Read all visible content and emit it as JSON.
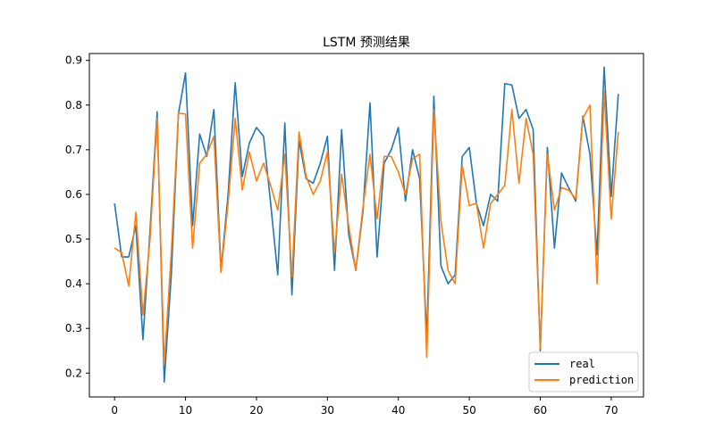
{
  "chart_data": {
    "type": "line",
    "title": "LSTM 预测结果",
    "xlabel": "",
    "ylabel": "",
    "xlim": [
      -3.55,
      74.55
    ],
    "ylim": [
      0.1466,
      0.9154
    ],
    "xticks": [
      0,
      10,
      20,
      30,
      40,
      50,
      60,
      70
    ],
    "yticks": [
      0.2,
      0.3,
      0.4,
      0.5,
      0.6,
      0.7,
      0.8,
      0.9
    ],
    "ytick_labels": [
      "0.2",
      "0.3",
      "0.4",
      "0.5",
      "0.6",
      "0.7",
      "0.8",
      "0.9"
    ],
    "grid": false,
    "legend_position": "lower-right",
    "x": [
      0,
      1,
      2,
      3,
      4,
      5,
      6,
      7,
      8,
      9,
      10,
      11,
      12,
      13,
      14,
      15,
      16,
      17,
      18,
      19,
      20,
      21,
      22,
      23,
      24,
      25,
      26,
      27,
      28,
      29,
      30,
      31,
      32,
      33,
      34,
      35,
      36,
      37,
      38,
      39,
      40,
      41,
      42,
      43,
      44,
      45,
      46,
      47,
      48,
      49,
      50,
      51,
      52,
      53,
      54,
      55,
      56,
      57,
      58,
      59,
      60,
      61,
      62,
      63,
      64,
      65,
      66,
      67,
      68,
      69,
      70,
      71
    ],
    "series": [
      {
        "name": "real",
        "color": "#1f77b4",
        "values": [
          0.58,
          0.46,
          0.46,
          0.53,
          0.275,
          0.52,
          0.785,
          0.18,
          0.42,
          0.78,
          0.872,
          0.53,
          0.735,
          0.685,
          0.79,
          0.43,
          0.6,
          0.85,
          0.64,
          0.715,
          0.75,
          0.73,
          0.58,
          0.42,
          0.76,
          0.375,
          0.72,
          0.635,
          0.625,
          0.67,
          0.73,
          0.43,
          0.745,
          0.51,
          0.43,
          0.56,
          0.805,
          0.46,
          0.67,
          0.7,
          0.75,
          0.585,
          0.7,
          0.635,
          0.28,
          0.82,
          0.44,
          0.4,
          0.42,
          0.685,
          0.705,
          0.58,
          0.53,
          0.6,
          0.585,
          0.848,
          0.845,
          0.77,
          0.79,
          0.745,
          0.25,
          0.705,
          0.48,
          0.648,
          0.615,
          0.585,
          0.775,
          0.69,
          0.465,
          0.885,
          0.595,
          0.825
        ]
      },
      {
        "name": "prediction",
        "color": "#ff7f0e",
        "values": [
          0.48,
          0.47,
          0.395,
          0.56,
          0.33,
          0.5,
          0.77,
          0.22,
          0.47,
          0.782,
          0.78,
          0.48,
          0.67,
          0.69,
          0.73,
          0.425,
          0.58,
          0.77,
          0.61,
          0.695,
          0.63,
          0.67,
          0.62,
          0.565,
          0.69,
          0.415,
          0.74,
          0.64,
          0.6,
          0.63,
          0.695,
          0.47,
          0.645,
          0.53,
          0.43,
          0.57,
          0.69,
          0.545,
          0.685,
          0.685,
          0.65,
          0.6,
          0.68,
          0.69,
          0.235,
          0.79,
          0.54,
          0.43,
          0.4,
          0.665,
          0.575,
          0.58,
          0.48,
          0.58,
          0.6,
          0.62,
          0.79,
          0.625,
          0.77,
          0.69,
          0.255,
          0.69,
          0.565,
          0.615,
          0.61,
          0.59,
          0.77,
          0.8,
          0.4,
          0.83,
          0.545,
          0.74
        ]
      }
    ]
  }
}
